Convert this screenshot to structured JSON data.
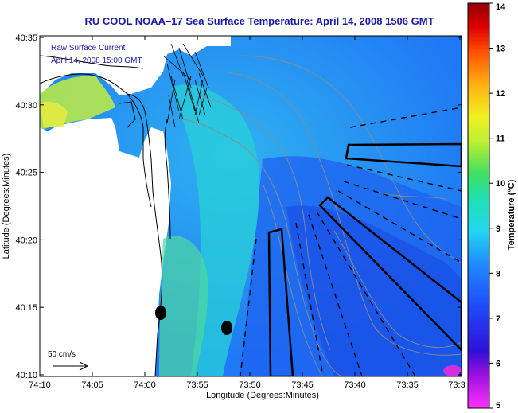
{
  "title": "RU COOL  NOAA–17  Sea Surface Temperature:  April 14, 2008 1506 GMT",
  "overlay": {
    "line1": "Raw Surface Current",
    "line2": "April 14, 2008 15:00 GMT"
  },
  "scale_bar_label": "50 cm/s",
  "x_axis": {
    "label": "Longitude (Degrees:Minutes)",
    "ticks": [
      "74:10",
      "74:05",
      "74:00",
      "73:55",
      "73:50",
      "73:45",
      "73:40",
      "73:35",
      "73:3"
    ]
  },
  "y_axis": {
    "label": "Latitude (Degrees:Minutes)",
    "ticks": [
      "40:35",
      "40:30",
      "40:25",
      "40:20",
      "40:15",
      "40:10"
    ]
  },
  "colorbar": {
    "label": "Temperature (°C)",
    "min": 5,
    "max": 14,
    "ticks": [
      "14",
      "13",
      "12",
      "11",
      "10",
      "9",
      "8",
      "7",
      "6",
      "5"
    ]
  }
}
